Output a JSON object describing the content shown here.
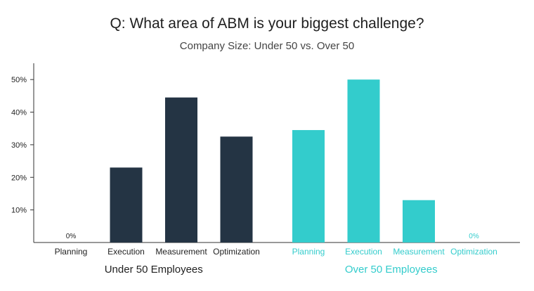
{
  "title": "Q: What area of ABM is your biggest challenge?",
  "subtitle": "Company Size: Under 50 vs. Over 50",
  "colors": {
    "under": "#243444",
    "over": "#33cccc",
    "axis": "#333333",
    "text": "#222222"
  },
  "chart_data": {
    "type": "bar",
    "categories": [
      "Planning",
      "Execution",
      "Measurement",
      "Optimization"
    ],
    "ylim": [
      0,
      55
    ],
    "yticks": [
      10,
      20,
      30,
      40,
      50
    ],
    "ytick_labels": [
      "10%",
      "20%",
      "30%",
      "40%",
      "50%"
    ],
    "series": [
      {
        "name": "Under 50 Employees",
        "values": [
          0,
          23,
          44.5,
          32.5
        ],
        "value_labels": [
          "0%",
          "",
          "",
          ""
        ]
      },
      {
        "name": "Over 50 Employees",
        "values": [
          34.5,
          50,
          13,
          0
        ],
        "value_labels": [
          "",
          "",
          "",
          "0%"
        ]
      }
    ]
  }
}
